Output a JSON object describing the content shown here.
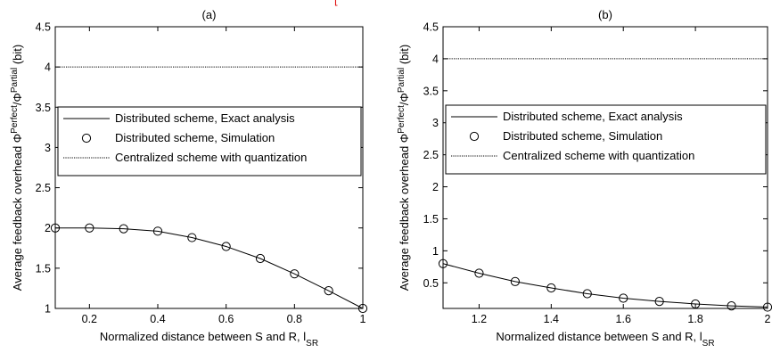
{
  "header_mark": "[",
  "chart_data": [
    {
      "type": "line",
      "title": "(a)",
      "xlabel": "Normalized distance between S and R, l",
      "xlabel_sub": "SR",
      "ylabel_prefix": "Average feedback overhead Φ",
      "ylabel_sup1": "Perfect",
      "ylabel_mid": "/Φ",
      "ylabel_sup2": "Partial",
      "ylabel_suffix": " (bit)",
      "xlim": [
        0.1,
        1.0
      ],
      "ylim": [
        1.0,
        4.5
      ],
      "xticks": [
        0.2,
        0.4,
        0.6,
        0.8,
        1
      ],
      "xtick_labels": [
        "0.2",
        "0.4",
        "0.6",
        "0.8",
        "1"
      ],
      "yticks": [
        1,
        1.5,
        2,
        2.5,
        3,
        3.5,
        4,
        4.5
      ],
      "ytick_labels": [
        "1",
        "1.5",
        "2",
        "2.5",
        "3",
        "3.5",
        "4",
        "4.5"
      ],
      "grid": false,
      "legend_placement": "center",
      "series": [
        {
          "name": "Distributed scheme, Exact analysis",
          "style": "solid",
          "x": [
            0.1,
            0.2,
            0.3,
            0.4,
            0.5,
            0.6,
            0.7,
            0.8,
            0.9,
            1.0
          ],
          "y": [
            2.0,
            2.0,
            1.99,
            1.96,
            1.88,
            1.77,
            1.62,
            1.43,
            1.22,
            1.0
          ]
        },
        {
          "name": "Distributed scheme, Simulation",
          "style": "marker-circle",
          "x": [
            0.1,
            0.2,
            0.3,
            0.4,
            0.5,
            0.6,
            0.7,
            0.8,
            0.9,
            1.0
          ],
          "y": [
            2.0,
            2.0,
            1.99,
            1.96,
            1.88,
            1.77,
            1.62,
            1.43,
            1.22,
            1.0
          ]
        },
        {
          "name": "Centralized scheme with quantization",
          "style": "dotted",
          "x": [
            0.1,
            1.0
          ],
          "y": [
            4.0,
            4.0
          ]
        }
      ]
    },
    {
      "type": "line",
      "title": "(b)",
      "xlabel": "Normalized distance between S and R, l",
      "xlabel_sub": "SR",
      "ylabel_prefix": "Average feedback overhead Φ",
      "ylabel_sup1": "Perfect",
      "ylabel_mid": "/Φ",
      "ylabel_sup2": "Partial",
      "ylabel_suffix": " (bit)",
      "xlim": [
        1.1,
        2.0
      ],
      "ylim": [
        0.1,
        4.5
      ],
      "xticks": [
        1.2,
        1.4,
        1.6,
        1.8,
        2
      ],
      "xtick_labels": [
        "1.2",
        "1.4",
        "1.6",
        "1.8",
        "2"
      ],
      "yticks": [
        0.5,
        1,
        1.5,
        2,
        2.5,
        3,
        3.5,
        4,
        4.5
      ],
      "ytick_labels": [
        "0.5",
        "1",
        "1.5",
        "2",
        "2.5",
        "3",
        "3.5",
        "4",
        "4.5"
      ],
      "grid": false,
      "legend_placement": "center",
      "series": [
        {
          "name": "Distributed scheme, Exact analysis",
          "style": "solid",
          "x": [
            1.1,
            1.2,
            1.3,
            1.4,
            1.5,
            1.6,
            1.7,
            1.8,
            1.9,
            2.0
          ],
          "y": [
            0.8,
            0.65,
            0.52,
            0.42,
            0.33,
            0.26,
            0.21,
            0.17,
            0.14,
            0.12
          ]
        },
        {
          "name": "Distributed scheme, Simulation",
          "style": "marker-circle",
          "x": [
            1.1,
            1.2,
            1.3,
            1.4,
            1.5,
            1.6,
            1.7,
            1.8,
            1.9,
            2.0
          ],
          "y": [
            0.8,
            0.65,
            0.52,
            0.42,
            0.33,
            0.26,
            0.21,
            0.17,
            0.14,
            0.12
          ]
        },
        {
          "name": "Centralized scheme with quantization",
          "style": "dotted",
          "x": [
            1.1,
            2.0
          ],
          "y": [
            4.0,
            4.0
          ]
        }
      ]
    }
  ]
}
